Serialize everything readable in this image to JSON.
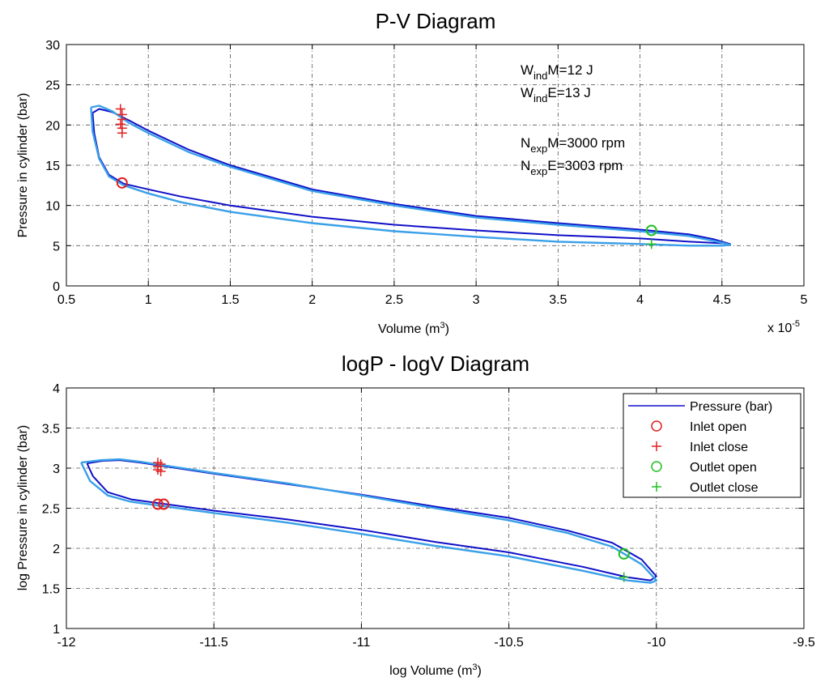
{
  "chart_data": [
    {
      "type": "line",
      "title": "P-V Diagram",
      "xlabel": "Volume (m",
      "xlabel_sup": "3",
      "xlabel_end": ")",
      "ylabel": "Pressure in cylinder (bar)",
      "x_multiplier_label": "x 10",
      "x_multiplier_exp": "-5",
      "xlim": [
        0.5,
        5
      ],
      "ylim": [
        0,
        30
      ],
      "xticks": [
        "0.5",
        "1",
        "1.5",
        "2",
        "2.5",
        "3",
        "3.5",
        "4",
        "4.5",
        "5"
      ],
      "yticks": [
        "0",
        "5",
        "10",
        "15",
        "20",
        "25",
        "30"
      ],
      "grid": true,
      "annotations": [
        {
          "base": "W",
          "sub": "ind",
          "rest": "M=12 J",
          "color": "#1010c8"
        },
        {
          "base": "W",
          "sub": "ind",
          "rest": "E=13 J",
          "color": "#3aa0e8"
        },
        {
          "base": "N",
          "sub": "exp",
          "rest": "M=3000 rpm",
          "color": "#1010c8"
        },
        {
          "base": "N",
          "sub": "exp",
          "rest": "E=3003 rpm",
          "color": "#3aa0e8"
        }
      ],
      "series": [
        {
          "color": "#1010c8",
          "x": [
            0.66,
            0.7,
            0.78,
            0.88,
            1.0,
            1.25,
            1.5,
            2.0,
            2.5,
            3.0,
            3.5,
            4.0,
            4.3,
            4.45,
            4.55,
            4.5,
            4.3,
            4.0,
            3.5,
            3.0,
            2.5,
            2.0,
            1.5,
            1.2,
            1.0,
            0.85,
            0.76,
            0.7,
            0.67,
            0.66
          ],
          "y": [
            21.5,
            22.0,
            21.6,
            20.6,
            19.3,
            16.9,
            15.0,
            12.0,
            10.2,
            8.7,
            7.8,
            7.0,
            6.4,
            5.8,
            5.2,
            5.3,
            5.5,
            5.9,
            6.3,
            6.9,
            7.6,
            8.6,
            10.0,
            11.1,
            12.0,
            12.7,
            13.8,
            16.0,
            19.0,
            21.5
          ]
        },
        {
          "color": "#3aa0e8",
          "x": [
            0.65,
            0.7,
            0.78,
            0.88,
            1.0,
            1.25,
            1.5,
            2.0,
            2.5,
            3.0,
            3.5,
            4.0,
            4.3,
            4.45,
            4.55,
            4.5,
            4.3,
            4.0,
            3.5,
            3.0,
            2.5,
            2.0,
            1.5,
            1.2,
            1.0,
            0.85,
            0.76,
            0.7,
            0.66,
            0.65
          ],
          "y": [
            22.2,
            22.4,
            21.7,
            20.3,
            19.0,
            16.6,
            14.8,
            11.8,
            10.0,
            8.5,
            7.6,
            6.8,
            6.2,
            5.6,
            5.1,
            5.0,
            5.0,
            5.2,
            5.5,
            6.1,
            6.8,
            7.8,
            9.2,
            10.4,
            11.5,
            12.5,
            13.6,
            15.8,
            19.2,
            22.2
          ]
        }
      ],
      "markers": [
        {
          "kind": "circle",
          "color": "#e02020",
          "points": [
            [
              0.84,
              12.8
            ]
          ]
        },
        {
          "kind": "plus",
          "color": "#e02020",
          "points": [
            [
              0.83,
              22.0
            ],
            [
              0.84,
              21.3
            ],
            [
              0.84,
              20.7
            ],
            [
              0.83,
              20.1
            ],
            [
              0.84,
              19.6
            ],
            [
              0.84,
              19.0
            ]
          ]
        },
        {
          "kind": "circle",
          "color": "#20c020",
          "points": [
            [
              4.07,
              6.9
            ]
          ]
        },
        {
          "kind": "plus",
          "color": "#20c020",
          "points": [
            [
              4.07,
              5.2
            ]
          ]
        }
      ]
    },
    {
      "type": "line",
      "title": "logP - logV Diagram",
      "xlabel": "log Volume (m",
      "xlabel_sup": "3",
      "xlabel_end": ")",
      "ylabel": "log Pressure in cylinder (bar)",
      "xlim": [
        -12,
        -9.5
      ],
      "ylim": [
        1,
        4
      ],
      "xticks": [
        "-12",
        "-11.5",
        "-11",
        "-10.5",
        "-10",
        "-9.5"
      ],
      "yticks": [
        "1",
        "1.5",
        "2",
        "2.5",
        "3",
        "3.5",
        "4"
      ],
      "grid": true,
      "legend_position": "top-right",
      "legend": [
        {
          "label": "Pressure (bar)",
          "kind": "line",
          "color": "#1010c8"
        },
        {
          "label": "Inlet open",
          "kind": "circle",
          "color": "#e02020"
        },
        {
          "label": "Inlet close",
          "kind": "plus",
          "color": "#e02020"
        },
        {
          "label": "Outlet open",
          "kind": "circle",
          "color": "#20c020"
        },
        {
          "label": "Outlet close",
          "kind": "plus",
          "color": "#20c020"
        }
      ],
      "series": [
        {
          "color": "#1010c8",
          "x": [
            -11.93,
            -11.88,
            -11.82,
            -11.75,
            -11.68,
            -11.5,
            -11.25,
            -11.0,
            -10.75,
            -10.5,
            -10.3,
            -10.15,
            -10.05,
            -10.0,
            -10.02,
            -10.1,
            -10.25,
            -10.5,
            -10.75,
            -11.0,
            -11.25,
            -11.5,
            -11.68,
            -11.78,
            -11.86,
            -11.91,
            -11.93
          ],
          "y": [
            3.06,
            3.09,
            3.1,
            3.07,
            3.03,
            2.93,
            2.8,
            2.67,
            2.52,
            2.38,
            2.22,
            2.07,
            1.86,
            1.65,
            1.6,
            1.64,
            1.77,
            1.95,
            2.08,
            2.23,
            2.36,
            2.47,
            2.56,
            2.61,
            2.7,
            2.9,
            3.06
          ]
        },
        {
          "color": "#3aa0e8",
          "x": [
            -11.95,
            -11.88,
            -11.82,
            -11.75,
            -11.68,
            -11.5,
            -11.25,
            -11.0,
            -10.75,
            -10.5,
            -10.3,
            -10.15,
            -10.05,
            -10.0,
            -10.02,
            -10.1,
            -10.25,
            -10.5,
            -10.75,
            -11.0,
            -11.25,
            -11.5,
            -11.68,
            -11.78,
            -11.86,
            -11.92,
            -11.95
          ],
          "y": [
            3.07,
            3.1,
            3.11,
            3.08,
            3.04,
            2.94,
            2.81,
            2.66,
            2.5,
            2.35,
            2.19,
            2.02,
            1.8,
            1.6,
            1.57,
            1.6,
            1.72,
            1.9,
            2.03,
            2.18,
            2.32,
            2.44,
            2.53,
            2.58,
            2.66,
            2.84,
            3.07
          ]
        }
      ],
      "markers": [
        {
          "kind": "circle",
          "color": "#e02020",
          "points": [
            [
              -11.69,
              2.55
            ],
            [
              -11.67,
              2.55
            ]
          ]
        },
        {
          "kind": "plus",
          "color": "#e02020",
          "points": [
            [
              -11.69,
              3.07
            ],
            [
              -11.69,
              3.02
            ],
            [
              -11.69,
              2.98
            ],
            [
              -11.68,
              3.05
            ],
            [
              -11.68,
              2.96
            ]
          ]
        },
        {
          "kind": "circle",
          "color": "#20c020",
          "points": [
            [
              -10.11,
              1.93
            ]
          ]
        },
        {
          "kind": "plus",
          "color": "#20c020",
          "points": [
            [
              -10.11,
              1.64
            ]
          ]
        }
      ]
    }
  ]
}
